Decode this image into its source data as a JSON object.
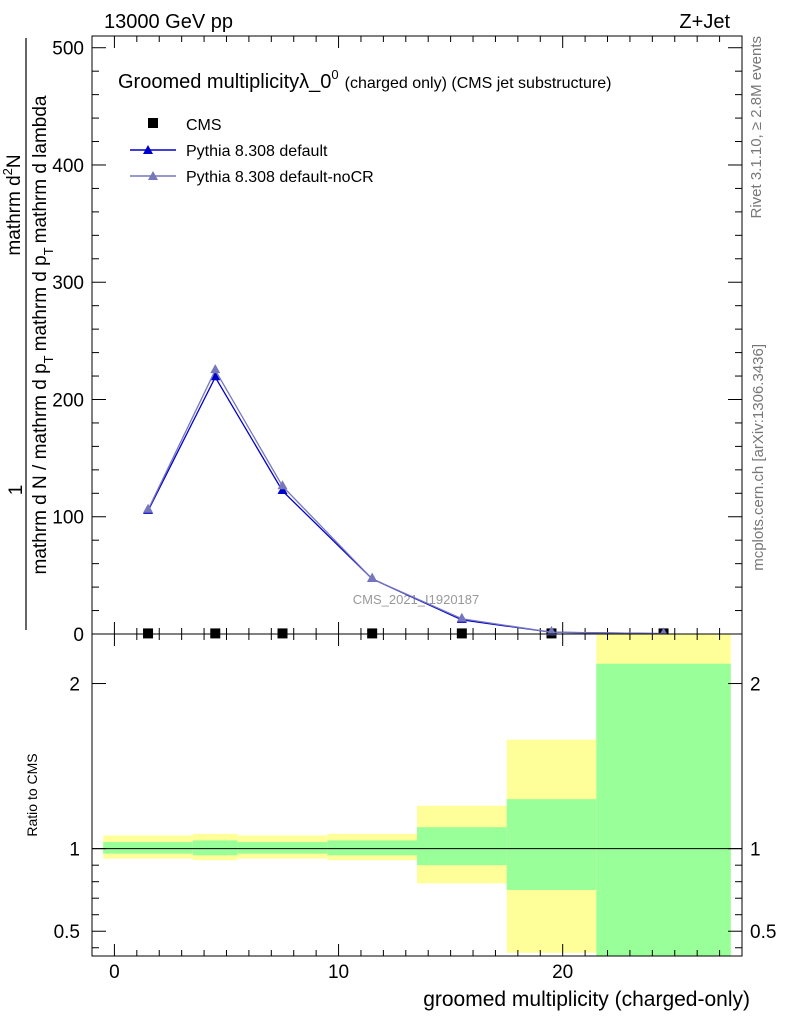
{
  "header": {
    "left": "13000 GeV pp",
    "right": "Z+Jet"
  },
  "side_labels": {
    "rivet": "Rivet 3.1.10, ≥ 2.8M events",
    "mcplots": "mcplots.cern.ch [arXiv:1306.3436]"
  },
  "watermark": "CMS_2021_I1920187",
  "title": {
    "main": "Groomed multiplicityλ_0",
    "sup": "0",
    "small": "(charged only) (CMS jet substructure)"
  },
  "ylabel_top": {
    "prefix": "1",
    "numerator": "mathrm d",
    "numerator_sup": "2",
    "numerator_end": "N",
    "denominator": "mathrm d N / mathrm d p",
    "denominator_sub": "T",
    "denominator_mid": "mathrm d p",
    "denominator_sub2": "T",
    "denominator_end": "mathrm d lambda"
  },
  "ylabel_ratio": "Ratio to CMS",
  "xlabel": "groomed multiplicity (charged-only)",
  "colors": {
    "default": "#0000cc",
    "nocr": "#7777bb",
    "band_inner": "#99ff99",
    "band_outer": "#ffff99",
    "data": "#000000"
  },
  "chart_data": {
    "type": "line",
    "xlim": [
      -1,
      28
    ],
    "ylim_main": [
      0,
      510
    ],
    "ylim_ratio": [
      0.35,
      2.3
    ],
    "yticks_main": [
      0,
      100,
      200,
      300,
      400,
      500
    ],
    "yticks_ratio": [
      0.5,
      1,
      2
    ],
    "xticks": [
      0,
      10,
      20
    ],
    "legend_position": "top-left",
    "legend": [
      "CMS",
      "Pythia 8.308 default",
      "Pythia 8.308 default-noCR"
    ],
    "bin_edges": [
      -0.5,
      3.5,
      5.5,
      9.5,
      13.5,
      17.5,
      21.5,
      27.5
    ],
    "x": [
      1.5,
      4.5,
      7.5,
      11.5,
      15.5,
      19.5,
      24.5
    ],
    "series": [
      {
        "name": "CMS",
        "values": [
          0.5,
          0.5,
          0.5,
          0.5,
          0.5,
          0.5,
          0.5
        ]
      },
      {
        "name": "Pythia 8.308 default",
        "values": [
          105,
          219,
          122,
          47,
          12,
          1.5,
          0.3
        ]
      },
      {
        "name": "Pythia 8.308 default-noCR",
        "values": [
          106,
          225,
          126,
          47,
          13,
          1.5,
          0.3
        ]
      }
    ],
    "ratio_band_inner": [
      [
        0.97,
        1.04
      ],
      [
        0.96,
        1.05
      ],
      [
        0.97,
        1.04
      ],
      [
        0.96,
        1.05
      ],
      [
        0.9,
        1.13
      ],
      [
        0.75,
        1.3
      ],
      [
        0.34,
        2.12
      ]
    ],
    "ratio_band_outer": [
      [
        0.94,
        1.08
      ],
      [
        0.93,
        1.09
      ],
      [
        0.94,
        1.08
      ],
      [
        0.93,
        1.09
      ],
      [
        0.79,
        1.26
      ],
      [
        0.37,
        1.66
      ],
      [
        0.34,
        2.3
      ]
    ]
  }
}
